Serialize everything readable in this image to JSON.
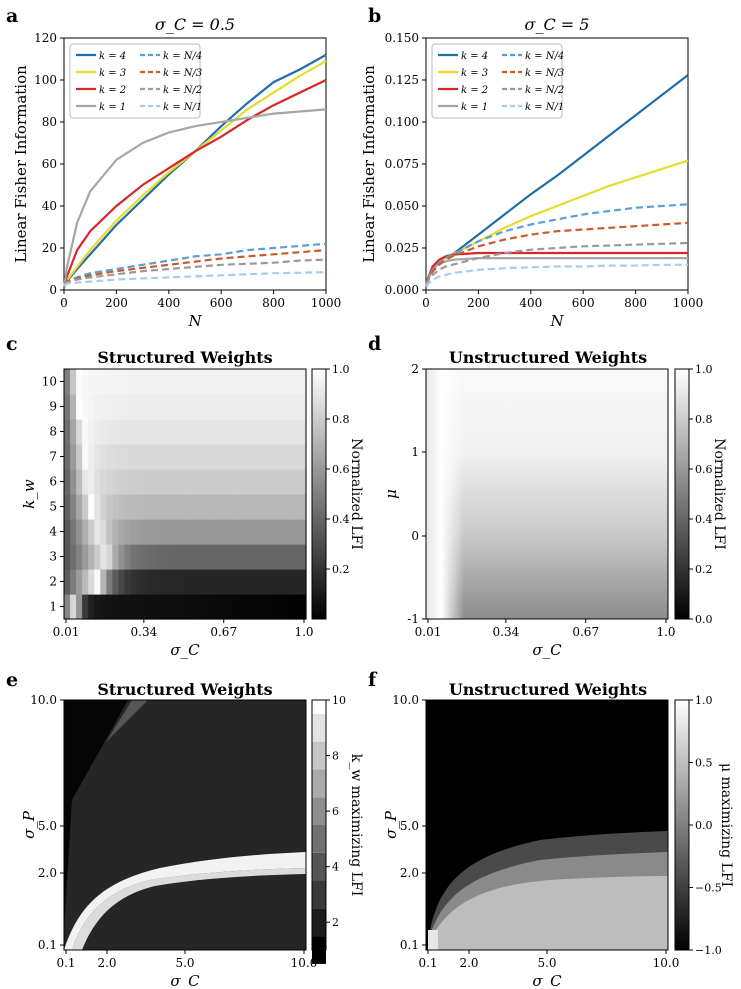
{
  "panels": {
    "a": {
      "letter": "a",
      "title": "σ_C = 0.5"
    },
    "b": {
      "letter": "b",
      "title": "σ_C = 5"
    },
    "c": {
      "letter": "c",
      "title": "Structured Weights",
      "colorbar_label": "Normalized LFI"
    },
    "d": {
      "letter": "d",
      "title": "Unstructured Weights",
      "colorbar_label": "Normalized LFI"
    },
    "e": {
      "letter": "e",
      "title": "Structured Weights",
      "colorbar_label": "k_w maximizing LFI"
    },
    "f": {
      "letter": "f",
      "title": "Unstructured Weights",
      "colorbar_label": "μ maximizing LFI"
    }
  },
  "colors": {
    "k4": "#1f6ea8",
    "k3": "#e6dc2e",
    "k2": "#d8262b",
    "k1": "#a6a6a6",
    "kN4": "#5b9fd4",
    "kN3": "#cc5a2f",
    "kN2": "#9a9a9a",
    "kN1": "#a8cdea"
  },
  "chart_data": [
    {
      "type": "line",
      "panel": "a",
      "title": "σ_C = 0.5",
      "xlabel": "N",
      "ylabel": "Linear Fisher Information",
      "xlim": [
        0,
        1000
      ],
      "ylim": [
        0,
        120
      ],
      "xticks": [
        "0",
        "200",
        "400",
        "600",
        "800",
        "1000"
      ],
      "yticks": [
        "0",
        "20",
        "40",
        "60",
        "80",
        "100",
        "120"
      ],
      "legend": "top-left",
      "x": [
        1,
        10,
        50,
        100,
        200,
        300,
        400,
        500,
        600,
        700,
        800,
        900,
        1000
      ],
      "series": [
        {
          "name": "k = 4",
          "style": "solid",
          "color": "k4",
          "values": [
            1.5,
            4.0,
            10,
            17,
            31,
            43,
            55,
            66,
            78,
            89,
            99,
            105,
            112
          ]
        },
        {
          "name": "k = 3",
          "style": "solid",
          "color": "k3",
          "values": [
            1.5,
            4.5,
            11,
            19,
            33,
            45,
            56,
            66,
            76,
            86,
            94,
            102,
            109
          ]
        },
        {
          "name": "k = 2",
          "style": "solid",
          "color": "k2",
          "values": [
            1.5,
            6.0,
            19,
            28,
            40,
            50,
            58,
            66,
            73,
            81,
            88,
            94,
            100
          ]
        },
        {
          "name": "k = 1",
          "style": "solid",
          "color": "k1",
          "values": [
            1.5,
            10,
            32,
            47,
            62,
            70,
            75,
            78,
            80,
            82,
            84,
            85,
            86
          ]
        },
        {
          "name": "k = N/4",
          "style": "dashed",
          "color": "kN4",
          "values": [
            3,
            4,
            6,
            8,
            10,
            12,
            14,
            16,
            17,
            19,
            20,
            21,
            22
          ]
        },
        {
          "name": "k = N/3",
          "style": "dashed",
          "color": "kN3",
          "values": [
            3,
            4,
            5.5,
            7,
            9,
            10.5,
            12,
            13.5,
            15,
            16,
            17,
            18,
            19
          ]
        },
        {
          "name": "k = N/2",
          "style": "dashed",
          "color": "kN2",
          "values": [
            3,
            3.5,
            5,
            6,
            7.5,
            9,
            10,
            11,
            12,
            12.5,
            13,
            14,
            14.5
          ]
        },
        {
          "name": "k = N/1",
          "style": "dashed",
          "color": "kN1",
          "values": [
            2,
            3,
            3.5,
            4,
            5,
            5.5,
            6,
            6.5,
            7,
            7.5,
            8,
            8.2,
            8.5
          ]
        }
      ]
    },
    {
      "type": "line",
      "panel": "b",
      "title": "σ_C = 5",
      "xlabel": "N",
      "ylabel": "Linear Fisher Information",
      "xlim": [
        0,
        1000
      ],
      "ylim": [
        0,
        0.15
      ],
      "xticks": [
        "0",
        "200",
        "400",
        "600",
        "800",
        "1000"
      ],
      "yticks": [
        "0.000",
        "0.025",
        "0.050",
        "0.075",
        "0.100",
        "0.125",
        "0.150"
      ],
      "legend": "top-left",
      "x": [
        1,
        10,
        25,
        50,
        75,
        100,
        200,
        300,
        400,
        500,
        600,
        700,
        800,
        900,
        1000
      ],
      "series": [
        {
          "name": "k = 4",
          "style": "solid",
          "color": "k4",
          "values": [
            0.003,
            0.008,
            0.013,
            0.017,
            0.019,
            0.021,
            0.033,
            0.045,
            0.057,
            0.068,
            0.08,
            0.092,
            0.104,
            0.116,
            0.128
          ]
        },
        {
          "name": "k = 3",
          "style": "solid",
          "color": "k3",
          "values": [
            0.003,
            0.008,
            0.013,
            0.017,
            0.019,
            0.021,
            0.029,
            0.037,
            0.044,
            0.05,
            0.056,
            0.062,
            0.067,
            0.072,
            0.077
          ]
        },
        {
          "name": "k = 2",
          "style": "solid",
          "color": "k2",
          "values": [
            0.003,
            0.008,
            0.014,
            0.018,
            0.02,
            0.021,
            0.022,
            0.022,
            0.022,
            0.022,
            0.022,
            0.022,
            0.022,
            0.022,
            0.022
          ]
        },
        {
          "name": "k = 1",
          "style": "solid",
          "color": "k1",
          "values": [
            0.002,
            0.007,
            0.012,
            0.016,
            0.017,
            0.018,
            0.019,
            0.019,
            0.019,
            0.019,
            0.019,
            0.019,
            0.019,
            0.019,
            0.019
          ]
        },
        {
          "name": "k = N/4",
          "style": "dashed",
          "color": "kN4",
          "values": [
            0.004,
            0.008,
            0.012,
            0.016,
            0.019,
            0.021,
            0.029,
            0.035,
            0.039,
            0.042,
            0.045,
            0.047,
            0.049,
            0.05,
            0.051
          ]
        },
        {
          "name": "k = N/3",
          "style": "dashed",
          "color": "kN3",
          "values": [
            0.004,
            0.007,
            0.011,
            0.015,
            0.018,
            0.02,
            0.026,
            0.03,
            0.033,
            0.035,
            0.036,
            0.037,
            0.038,
            0.039,
            0.04
          ]
        },
        {
          "name": "k = N/2",
          "style": "dashed",
          "color": "kN2",
          "values": [
            0.003,
            0.006,
            0.009,
            0.012,
            0.014,
            0.015,
            0.019,
            0.022,
            0.024,
            0.025,
            0.026,
            0.0265,
            0.027,
            0.0275,
            0.028
          ]
        },
        {
          "name": "k = N/1",
          "style": "dashed",
          "color": "kN1",
          "values": [
            0.002,
            0.004,
            0.006,
            0.008,
            0.009,
            0.01,
            0.012,
            0.013,
            0.0135,
            0.014,
            0.014,
            0.0145,
            0.0145,
            0.015,
            0.015
          ]
        }
      ]
    },
    {
      "type": "heatmap",
      "panel": "c",
      "title": "Structured Weights",
      "xlabel": "σ_C",
      "ylabel": "k_w",
      "xlim": [
        0.01,
        1.0
      ],
      "xticks": [
        "0.01",
        "0.34",
        "0.67",
        "1.0"
      ],
      "yticks": [
        "1",
        "2",
        "3",
        "4",
        "5",
        "6",
        "7",
        "8",
        "9",
        "10"
      ],
      "colorbar": {
        "label": "Normalized LFI",
        "range": [
          0,
          1
        ],
        "ticks": [
          "0.2",
          "0.4",
          "0.6",
          "0.8",
          "1.0"
        ]
      },
      "rows_kw": [
        1,
        2,
        3,
        4,
        5,
        6,
        7,
        8,
        9,
        10
      ],
      "peak_sigma": [
        0.06,
        0.15,
        0.18,
        0.15,
        0.12,
        0.1,
        0.09,
        0.08,
        0.07,
        0.06
      ],
      "tail_value": [
        0.0,
        0.15,
        0.4,
        0.6,
        0.72,
        0.8,
        0.85,
        0.9,
        0.93,
        0.95
      ]
    },
    {
      "type": "heatmap",
      "panel": "d",
      "title": "Unstructured Weights",
      "xlabel": "σ_C",
      "ylabel": "μ",
      "xlim": [
        0.01,
        1.0
      ],
      "ylim": [
        -1,
        2
      ],
      "xticks": [
        "0.01",
        "0.34",
        "0.67",
        "1.0"
      ],
      "yticks": [
        "-1",
        "0",
        "1",
        "2"
      ],
      "colorbar": {
        "label": "Normalized LFI",
        "range": [
          0,
          1
        ],
        "ticks": [
          "0.0",
          "0.2",
          "0.4",
          "0.6",
          "0.8",
          "1.0"
        ]
      },
      "peak_sigma": 0.05,
      "tail_value_at_mu": [
        [
          -1,
          0.55
        ],
        [
          0,
          0.78
        ],
        [
          1,
          0.95
        ],
        [
          2,
          0.98
        ]
      ]
    },
    {
      "type": "heatmap",
      "panel": "e",
      "title": "Structured Weights",
      "xlabel": "σ_C",
      "ylabel": "σ_P",
      "xticks": [
        "0.1",
        "2.0",
        "5.0",
        "10.0"
      ],
      "yticks": [
        "0.1",
        "2.0",
        "5.0",
        "10.0"
      ],
      "colorbar": {
        "label": "k_w maximizing LFI",
        "range": [
          1,
          10
        ],
        "ticks": [
          "2",
          "4",
          "6",
          "8",
          "10"
        ]
      }
    },
    {
      "type": "heatmap",
      "panel": "f",
      "title": "Unstructured Weights",
      "xlabel": "σ_C",
      "ylabel": "σ_P",
      "xticks": [
        "0.1",
        "2.0",
        "5.0",
        "10.0"
      ],
      "yticks": [
        "0.1",
        "2.0",
        "5.0",
        "10.0"
      ],
      "colorbar": {
        "label": "μ maximizing LFI",
        "range": [
          -1,
          1
        ],
        "ticks": [
          "−1.0",
          "−0.5",
          "0.0",
          "0.5",
          "1.0"
        ]
      }
    }
  ]
}
